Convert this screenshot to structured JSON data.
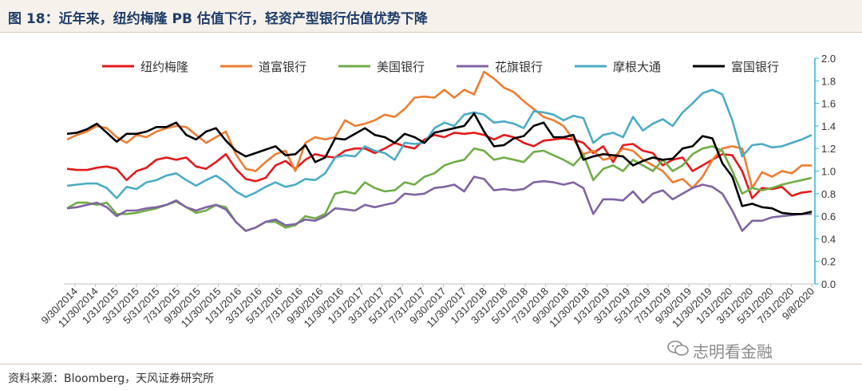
{
  "header": {
    "title": "图 18：近年来，纽约梅隆 PB 估值下行，轻资产型银行估值优势下降"
  },
  "footer": {
    "source": "资料来源：Bloomberg，天风证券研究所"
  },
  "watermark": {
    "text": "志明看金融",
    "icon": "wechat-icon"
  },
  "chart_data": {
    "type": "line",
    "ylim": [
      0.0,
      2.0
    ],
    "y_ticks": [
      "0.0",
      "0.2",
      "0.4",
      "0.6",
      "0.8",
      "1.0",
      "1.2",
      "1.4",
      "1.6",
      "1.8",
      "2.0"
    ],
    "x_tick_labels": [
      "9/30/2014",
      "11/30/2014",
      "1/31/2015",
      "3/31/2015",
      "5/31/2015",
      "7/31/2015",
      "9/30/2015",
      "11/30/2015",
      "1/31/2016",
      "3/31/2016",
      "5/31/2016",
      "7/31/2016",
      "9/30/2016",
      "11/30/2016",
      "1/31/2017",
      "3/31/2017",
      "5/31/2017",
      "7/31/2017",
      "9/30/2017",
      "11/30/2017",
      "1/31/2018",
      "3/31/2018",
      "5/31/2018",
      "7/31/2018",
      "9/30/2018",
      "11/30/2018",
      "1/31/2019",
      "3/31/2019",
      "5/31/2019",
      "7/31/2019",
      "9/30/2019",
      "11/30/2019",
      "1/31/2020",
      "3/31/2020",
      "5/31/2020",
      "7/31/2020",
      "9/8/2020"
    ],
    "legend_position": "top",
    "series": [
      {
        "name": "纽约梅隆",
        "color": "#e41a1c",
        "values": [
          1.02,
          1.01,
          1.01,
          1.03,
          1.04,
          1.02,
          0.92,
          1.0,
          1.03,
          1.1,
          1.12,
          1.1,
          1.12,
          1.04,
          1.02,
          1.08,
          1.15,
          1.02,
          0.93,
          0.91,
          0.94,
          1.05,
          1.09,
          1.02,
          1.1,
          1.15,
          1.13,
          1.12,
          1.18,
          1.2,
          1.2,
          1.16,
          1.2,
          1.25,
          1.22,
          1.2,
          1.28,
          1.32,
          1.3,
          1.34,
          1.33,
          1.34,
          1.32,
          1.28,
          1.32,
          1.3,
          1.25,
          1.22,
          1.27,
          1.28,
          1.29,
          1.28,
          1.25,
          1.16,
          1.22,
          1.08,
          1.23,
          1.24,
          1.18,
          1.16,
          1.05,
          1.1,
          1.12,
          1.0,
          1.05,
          1.1,
          1.15,
          1.14,
          1.0,
          0.76,
          0.85,
          0.84,
          0.86,
          0.78,
          0.81,
          0.82
        ]
      },
      {
        "name": "道富银行",
        "color": "#ed7d31",
        "values": [
          1.28,
          1.32,
          1.35,
          1.4,
          1.38,
          1.3,
          1.25,
          1.32,
          1.3,
          1.35,
          1.38,
          1.4,
          1.39,
          1.32,
          1.25,
          1.3,
          1.35,
          1.15,
          1.02,
          1.0,
          1.08,
          1.15,
          1.18,
          1.0,
          1.25,
          1.3,
          1.28,
          1.3,
          1.45,
          1.4,
          1.42,
          1.45,
          1.5,
          1.48,
          1.55,
          1.65,
          1.66,
          1.65,
          1.72,
          1.65,
          1.72,
          1.68,
          1.88,
          1.82,
          1.74,
          1.7,
          1.62,
          1.55,
          1.48,
          1.45,
          1.4,
          1.28,
          1.15,
          1.18,
          1.1,
          1.12,
          1.2,
          1.18,
          1.1,
          1.05,
          1.0,
          0.9,
          0.93,
          0.85,
          0.95,
          1.1,
          1.2,
          1.22,
          1.2,
          0.85,
          0.99,
          0.95,
          1.0,
          0.98,
          1.05,
          1.05
        ]
      },
      {
        "name": "美国银行",
        "color": "#70ad47",
        "values": [
          0.67,
          0.72,
          0.72,
          0.7,
          0.72,
          0.62,
          0.62,
          0.63,
          0.65,
          0.67,
          0.7,
          0.73,
          0.68,
          0.63,
          0.65,
          0.7,
          0.68,
          0.55,
          0.47,
          0.5,
          0.55,
          0.55,
          0.5,
          0.52,
          0.6,
          0.58,
          0.62,
          0.8,
          0.82,
          0.8,
          0.9,
          0.85,
          0.82,
          0.83,
          0.9,
          0.88,
          0.95,
          0.98,
          1.05,
          1.08,
          1.1,
          1.2,
          1.18,
          1.1,
          1.12,
          1.1,
          1.08,
          1.17,
          1.18,
          1.14,
          1.1,
          1.05,
          1.15,
          0.92,
          1.02,
          1.05,
          1.0,
          1.1,
          1.05,
          1.0,
          1.1,
          1.0,
          1.05,
          1.15,
          1.2,
          1.22,
          1.18,
          1.0,
          0.8,
          0.85,
          0.83,
          0.85,
          0.88,
          0.9,
          0.92,
          0.94
        ]
      },
      {
        "name": "花旗银行",
        "color": "#8064a2",
        "values": [
          0.67,
          0.68,
          0.7,
          0.72,
          0.68,
          0.6,
          0.65,
          0.65,
          0.67,
          0.68,
          0.7,
          0.74,
          0.68,
          0.65,
          0.68,
          0.7,
          0.66,
          0.55,
          0.47,
          0.5,
          0.55,
          0.57,
          0.52,
          0.53,
          0.57,
          0.56,
          0.6,
          0.67,
          0.66,
          0.65,
          0.7,
          0.68,
          0.7,
          0.72,
          0.8,
          0.79,
          0.8,
          0.85,
          0.86,
          0.88,
          0.82,
          0.95,
          0.93,
          0.83,
          0.84,
          0.83,
          0.84,
          0.9,
          0.91,
          0.9,
          0.88,
          0.9,
          0.85,
          0.62,
          0.75,
          0.75,
          0.74,
          0.82,
          0.72,
          0.8,
          0.83,
          0.75,
          0.8,
          0.85,
          0.88,
          0.86,
          0.8,
          0.65,
          0.47,
          0.56,
          0.56,
          0.59,
          0.6,
          0.61,
          0.62,
          0.62
        ]
      },
      {
        "name": "摩根大通",
        "color": "#4bacc6",
        "values": [
          0.87,
          0.88,
          0.89,
          0.89,
          0.85,
          0.76,
          0.86,
          0.84,
          0.9,
          0.92,
          0.96,
          0.98,
          0.92,
          0.87,
          0.92,
          0.96,
          0.9,
          0.82,
          0.77,
          0.81,
          0.86,
          0.9,
          0.86,
          0.88,
          0.93,
          0.92,
          0.98,
          1.12,
          1.14,
          1.13,
          1.22,
          1.18,
          1.16,
          1.1,
          1.25,
          1.24,
          1.25,
          1.38,
          1.43,
          1.4,
          1.5,
          1.52,
          1.5,
          1.43,
          1.44,
          1.42,
          1.38,
          1.53,
          1.52,
          1.5,
          1.45,
          1.49,
          1.47,
          1.25,
          1.32,
          1.34,
          1.3,
          1.48,
          1.36,
          1.42,
          1.46,
          1.4,
          1.52,
          1.6,
          1.69,
          1.72,
          1.68,
          1.45,
          1.13,
          1.23,
          1.24,
          1.21,
          1.22,
          1.25,
          1.28,
          1.32
        ]
      },
      {
        "name": "富国银行",
        "color": "#000000",
        "values": [
          1.33,
          1.34,
          1.37,
          1.42,
          1.34,
          1.26,
          1.33,
          1.33,
          1.35,
          1.39,
          1.39,
          1.43,
          1.32,
          1.28,
          1.35,
          1.38,
          1.27,
          1.18,
          1.13,
          1.16,
          1.19,
          1.22,
          1.14,
          1.15,
          1.23,
          1.08,
          1.12,
          1.29,
          1.28,
          1.33,
          1.38,
          1.32,
          1.3,
          1.25,
          1.33,
          1.3,
          1.25,
          1.34,
          1.36,
          1.38,
          1.4,
          1.51,
          1.35,
          1.22,
          1.23,
          1.29,
          1.31,
          1.4,
          1.43,
          1.3,
          1.3,
          1.32,
          1.1,
          1.13,
          1.15,
          1.14,
          1.13,
          1.05,
          1.09,
          1.12,
          1.1,
          1.11,
          1.2,
          1.22,
          1.31,
          1.29,
          1.07,
          0.95,
          0.69,
          0.71,
          0.68,
          0.67,
          0.63,
          0.62,
          0.62,
          0.64
        ]
      }
    ]
  }
}
